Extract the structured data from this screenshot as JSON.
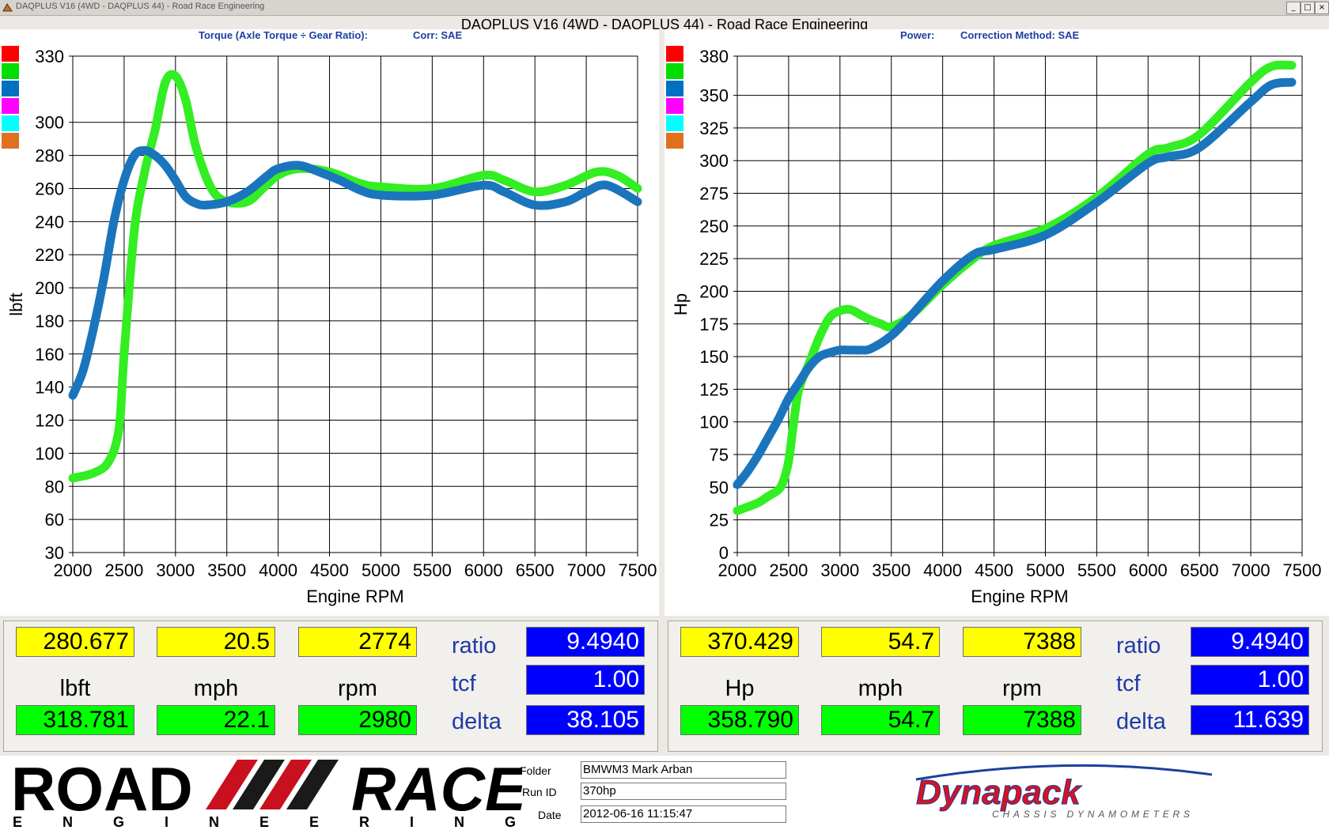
{
  "window": {
    "title": "DAQPLUS V16 (4WD - DAQPLUS 44) - Road Race Engineering",
    "controls": [
      "_",
      "□",
      "×"
    ]
  },
  "main_title": "DAQPLUS V16 (4WD - DAQPLUS 44) - Road Race Engineering",
  "legend_colors": [
    "#ff0000",
    "#00dd00",
    "#0070c0",
    "#ff00ff",
    "#00ffff",
    "#e07020"
  ],
  "torque_panel": {
    "header_left": "Torque (Axle Torque ÷ Gear Ratio):",
    "header_right": "Corr: SAE"
  },
  "power_panel": {
    "header_left": "Power:",
    "header_right": "Correction Method: SAE"
  },
  "chart_data": [
    {
      "type": "line",
      "xlabel": "Engine RPM",
      "ylabel": "lbft",
      "xlim": [
        2000,
        7500
      ],
      "x_ticks": [
        2000,
        2500,
        3000,
        3500,
        4000,
        4500,
        5000,
        5500,
        6000,
        6500,
        7000,
        7500
      ],
      "y_ticks": [
        30,
        60,
        80,
        100,
        120,
        140,
        160,
        180,
        200,
        220,
        240,
        260,
        280,
        300,
        330
      ],
      "grid": true,
      "series": [
        {
          "color": "#33ee22",
          "x": [
            2000,
            2200,
            2350,
            2450,
            2500,
            2600,
            2700,
            2800,
            2900,
            3000,
            3100,
            3200,
            3350,
            3500,
            3700,
            3850,
            4000,
            4200,
            4500,
            4800,
            5000,
            5500,
            6000,
            6200,
            6500,
            6800,
            7100,
            7300,
            7500
          ],
          "y": [
            85,
            88,
            95,
            115,
            160,
            235,
            270,
            295,
            318,
            321,
            310,
            285,
            260,
            252,
            252,
            260,
            268,
            272,
            270,
            263,
            261,
            260,
            268,
            265,
            258,
            262,
            270,
            268,
            260
          ]
        },
        {
          "color": "#1a75bd",
          "x": [
            2000,
            2100,
            2200,
            2300,
            2400,
            2500,
            2600,
            2700,
            2800,
            2900,
            3000,
            3100,
            3200,
            3300,
            3500,
            3700,
            3900,
            4000,
            4200,
            4400,
            4600,
            4800,
            5000,
            5500,
            6000,
            6200,
            6500,
            6800,
            7000,
            7200,
            7500
          ],
          "y": [
            135,
            150,
            175,
            205,
            240,
            265,
            280,
            283,
            280,
            274,
            265,
            255,
            251,
            250,
            252,
            258,
            268,
            272,
            274,
            270,
            265,
            259,
            256,
            256,
            262,
            258,
            250,
            252,
            258,
            262,
            252
          ]
        }
      ]
    },
    {
      "type": "line",
      "xlabel": "Engine RPM",
      "ylabel": "Hp",
      "xlim": [
        2000,
        7500
      ],
      "ylim": [
        0,
        380
      ],
      "x_ticks": [
        2000,
        2500,
        3000,
        3500,
        4000,
        4500,
        5000,
        5500,
        6000,
        6500,
        7000,
        7500
      ],
      "y_ticks": [
        0,
        25,
        50,
        75,
        100,
        125,
        150,
        175,
        200,
        225,
        250,
        275,
        300,
        325,
        350,
        380
      ],
      "grid": true,
      "series": [
        {
          "color": "#33ee22",
          "x": [
            2000,
            2200,
            2300,
            2400,
            2450,
            2500,
            2550,
            2600,
            2700,
            2800,
            2900,
            3000,
            3100,
            3200,
            3300,
            3400,
            3500,
            3700,
            4000,
            4300,
            4500,
            5000,
            5500,
            6000,
            6200,
            6500,
            7000,
            7200,
            7400
          ],
          "y": [
            32,
            38,
            43,
            48,
            55,
            70,
            100,
            125,
            145,
            165,
            180,
            185,
            186,
            182,
            178,
            175,
            173,
            182,
            205,
            225,
            235,
            248,
            272,
            305,
            310,
            320,
            360,
            372,
            373
          ]
        },
        {
          "color": "#1a75bd",
          "x": [
            2000,
            2100,
            2200,
            2300,
            2400,
            2500,
            2600,
            2700,
            2800,
            2900,
            3000,
            3100,
            3200,
            3300,
            3500,
            3700,
            4000,
            4300,
            4500,
            5000,
            5500,
            6000,
            6200,
            6500,
            7000,
            7200,
            7400
          ],
          "y": [
            52,
            62,
            74,
            88,
            102,
            118,
            130,
            142,
            150,
            153,
            155,
            155,
            155,
            156,
            166,
            182,
            208,
            228,
            232,
            243,
            268,
            298,
            303,
            310,
            345,
            358,
            360
          ]
        }
      ]
    }
  ],
  "readout_left": {
    "row1": [
      "280.677",
      "20.5",
      "2774"
    ],
    "units": [
      "lbft",
      "mph",
      "rpm"
    ],
    "row2": [
      "318.781",
      "22.1",
      "2980"
    ],
    "labels": [
      "ratio",
      "tcf",
      "delta"
    ],
    "values": [
      "9.4940",
      "1.00",
      "38.105"
    ]
  },
  "readout_right": {
    "row1": [
      "370.429",
      "54.7",
      "7388"
    ],
    "units": [
      "Hp",
      "mph",
      "rpm"
    ],
    "row2": [
      "358.790",
      "54.7",
      "7388"
    ],
    "labels": [
      "ratio",
      "tcf",
      "delta"
    ],
    "values": [
      "9.4940",
      "1.00",
      "11.639"
    ]
  },
  "footer": {
    "logo_top": "ROAD",
    "logo_top2": "RACE",
    "logo_sub": "ENGINEERING",
    "folder_label": "Folder",
    "folder_value": "BMWM3 Mark Arban",
    "runid_label": "Run ID",
    "runid_value": "370hp",
    "date_label": "Date",
    "date_value": "2012-06-16 11:15:47",
    "brand": "Dynapack",
    "brand_sub": "CHASSIS DYNAMOMETERS"
  }
}
